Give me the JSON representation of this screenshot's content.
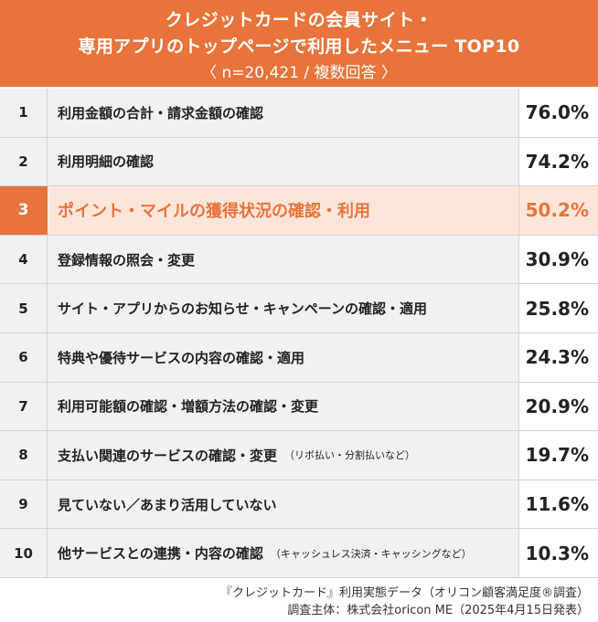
{
  "header": {
    "title_line1": "クレジットカードの会員サイト・",
    "title_line2": "専用アプリのトップページで利用したメニュー TOP10",
    "subtitle": "〈 n=20,421 / 複数回答 〉"
  },
  "chart_data": {
    "type": "table",
    "highlight_rank": 3,
    "highlight_color": "#e8743b",
    "rows": [
      {
        "rank": "1",
        "label": "利用金額の合計・請求金額の確認",
        "note": "",
        "value": "76.0%"
      },
      {
        "rank": "2",
        "label": "利用明細の確認",
        "note": "",
        "value": "74.2%"
      },
      {
        "rank": "3",
        "label": "ポイント・マイルの獲得状況の確認・利用",
        "note": "",
        "value": "50.2%"
      },
      {
        "rank": "4",
        "label": "登録情報の照会・変更",
        "note": "",
        "value": "30.9%"
      },
      {
        "rank": "5",
        "label": "サイト・アプリからのお知らせ・キャンペーンの確認・適用",
        "note": "",
        "value": "25.8%"
      },
      {
        "rank": "6",
        "label": "特典や優待サービスの内容の確認・適用",
        "note": "",
        "value": "24.3%"
      },
      {
        "rank": "7",
        "label": "利用可能額の確認・増額方法の確認・変更",
        "note": "",
        "value": "20.9%"
      },
      {
        "rank": "8",
        "label": "支払い関連のサービスの確認・変更",
        "note": "（リボ払い・分割払いなど）",
        "value": "19.7%"
      },
      {
        "rank": "9",
        "label": "見ていない／あまり活用していない",
        "note": "",
        "value": "11.6%"
      },
      {
        "rank": "10",
        "label": "他サービスとの連携・内容の確認",
        "note": "（キャッシュレス決済・キャッシングなど）",
        "value": "10.3%"
      }
    ]
  },
  "footer": {
    "source": "『クレジットカード』利用実態データ（オリコン顧客満足度®調査）",
    "organizer": "調査主体：株式会社oricon ME（2025年4月15日発表）"
  }
}
